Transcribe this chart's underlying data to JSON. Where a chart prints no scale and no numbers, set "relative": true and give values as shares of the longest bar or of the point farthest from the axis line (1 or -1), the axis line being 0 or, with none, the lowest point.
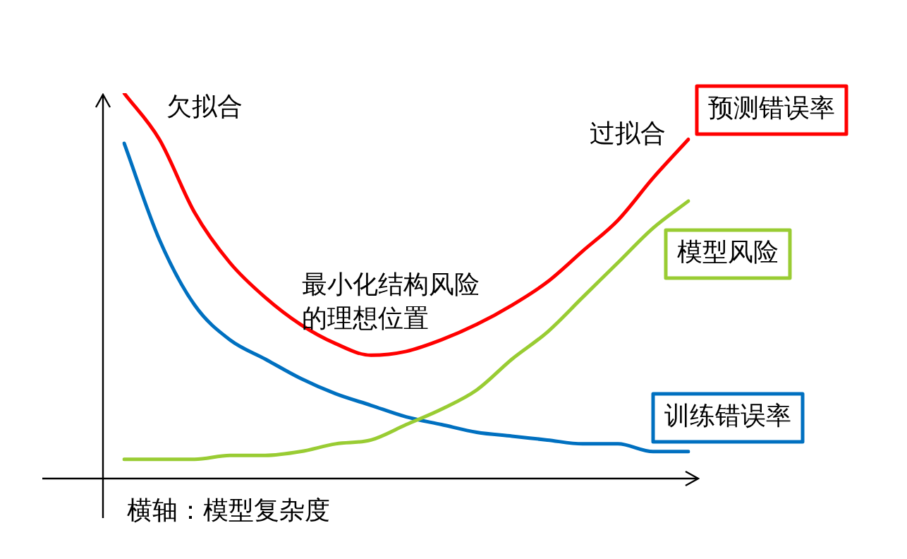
{
  "chart_data": {
    "type": "line",
    "relative": true,
    "xlabel": "横轴：模型复杂度",
    "categories": [
      null,
      null,
      null,
      null,
      null,
      null,
      null,
      null,
      null,
      null,
      null,
      null,
      null,
      null,
      null,
      null,
      null
    ],
    "series": [
      {
        "name": "预测错误率",
        "color": "#ff0000",
        "values": [
          1.0,
          0.88,
          0.69,
          0.56,
          0.47,
          0.4,
          0.35,
          0.32,
          0.33,
          0.36,
          0.4,
          0.45,
          0.51,
          0.59,
          0.67,
          0.78,
          0.88
        ]
      },
      {
        "name": "模型风险",
        "color": "#99cc33",
        "values": [
          0.05,
          0.05,
          0.05,
          0.06,
          0.06,
          0.07,
          0.09,
          0.1,
          0.14,
          0.18,
          0.23,
          0.31,
          0.38,
          0.47,
          0.56,
          0.65,
          0.72
        ]
      },
      {
        "name": "训练错误率",
        "color": "#0070c0",
        "values": [
          0.87,
          0.62,
          0.45,
          0.36,
          0.31,
          0.26,
          0.22,
          0.19,
          0.16,
          0.14,
          0.12,
          0.11,
          0.1,
          0.09,
          0.09,
          0.07,
          0.07
        ]
      }
    ],
    "annotations": [
      "欠拟合",
      "过拟合",
      "最小化结构风险",
      "的理想位置"
    ],
    "legend": false,
    "grid": false,
    "marker": "none",
    "line_style": "solid"
  }
}
